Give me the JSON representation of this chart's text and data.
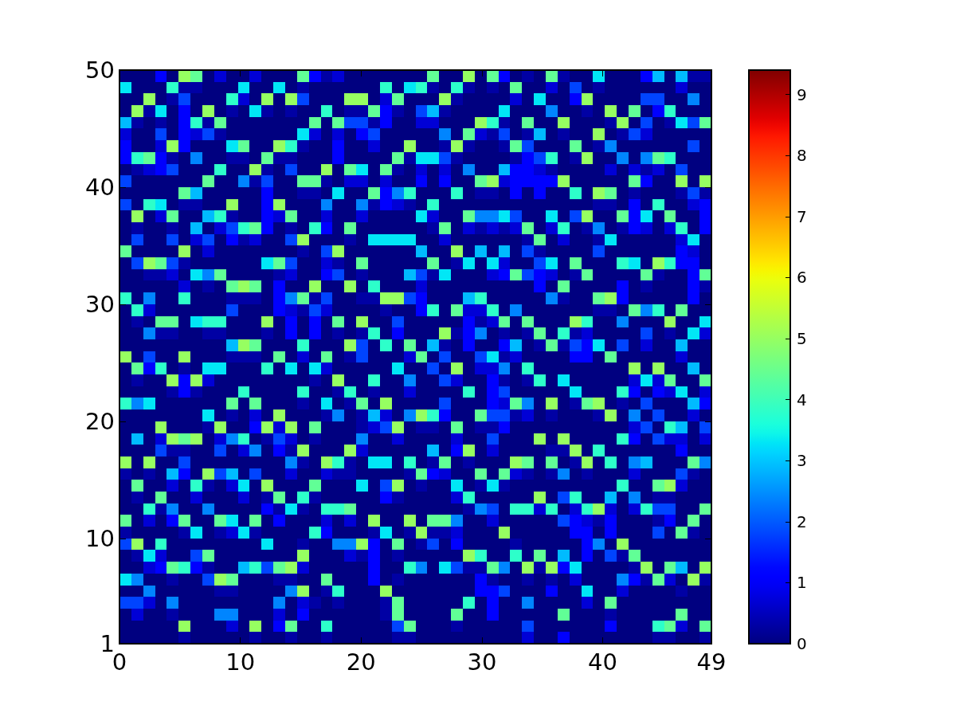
{
  "chart_data": {
    "type": "heatmap",
    "xlim": [
      0,
      49
    ],
    "xticks": [
      0,
      10,
      20,
      30,
      40,
      49
    ],
    "ylim": [
      1,
      50
    ],
    "yticks": [
      1,
      10,
      20,
      30,
      40,
      50
    ],
    "clim": [
      0,
      9.4
    ],
    "cticks": [
      0,
      1,
      2,
      3,
      4,
      5,
      6,
      7,
      8,
      9
    ],
    "cells": [
      [
        0,
        0,
        0,
        1.1,
        0,
        5,
        4.4,
        0,
        0.7,
        0,
        0,
        0.7,
        0,
        0,
        0,
        4.4,
        1.1,
        0.3,
        0.7,
        0,
        0,
        0,
        0,
        0,
        0,
        0,
        4.4,
        0,
        0,
        5,
        0,
        4.4,
        1.1,
        0,
        0.3,
        0,
        4.4,
        0.3,
        0,
        0,
        3.3,
        0,
        0,
        0,
        1.1,
        2.9,
        0,
        2.9,
        0.3,
        0.3
      ],
      [
        3.3,
        0,
        0,
        0,
        3.8,
        0.3,
        0.3,
        0,
        0,
        0,
        3.3,
        0,
        0,
        3.3,
        0,
        0.3,
        0,
        0,
        0,
        0,
        0,
        0,
        3.8,
        0,
        3.3,
        3.8,
        0.3,
        0,
        3.8,
        0.3,
        0,
        0.3,
        0,
        4.4,
        0,
        0,
        0.7,
        0,
        1.8,
        0,
        0.3,
        0,
        0,
        0,
        0,
        0,
        0,
        0.7,
        0,
        0
      ],
      [
        0,
        0,
        5,
        0,
        0.3,
        1.8,
        0,
        0,
        0,
        3.8,
        0.7,
        0,
        5,
        0,
        5,
        1.8,
        0,
        0,
        0,
        5,
        5,
        0,
        0.7,
        4.4,
        0,
        0,
        0,
        5,
        0.3,
        0,
        0,
        0,
        0,
        0.7,
        0,
        3.3,
        0,
        0,
        1.1,
        5,
        0,
        0,
        0,
        0,
        1.8,
        1.8,
        0,
        0,
        2.4,
        0
      ],
      [
        0,
        5,
        0.3,
        3.3,
        0,
        1.1,
        0,
        5,
        0,
        0.3,
        0,
        3.3,
        0.3,
        0,
        0.3,
        0,
        0,
        3.8,
        0,
        0.3,
        0.3,
        4.4,
        1.1,
        0.3,
        0,
        1.8,
        2.9,
        0.3,
        0,
        0,
        0,
        0,
        3.3,
        0,
        0,
        0,
        2.4,
        0,
        0,
        0.3,
        0,
        5,
        0,
        4.4,
        0,
        1.1,
        3.8,
        0,
        0,
        0
      ],
      [
        2.9,
        0.3,
        0,
        0.3,
        0,
        1.1,
        3.8,
        0.3,
        4.4,
        0,
        0,
        0,
        0,
        0,
        0,
        0,
        4.4,
        0,
        4.4,
        1.8,
        1.8,
        0.3,
        1.1,
        0,
        0,
        0.7,
        0.7,
        0,
        0,
        0,
        5,
        3.8,
        0.3,
        0,
        4.4,
        0,
        0,
        5,
        0,
        0,
        0,
        0.3,
        5,
        0,
        1.8,
        0,
        0.3,
        3.3,
        1.8,
        4.4
      ],
      [
        0.7,
        0,
        0,
        1.8,
        0,
        1.1,
        0.7,
        1.8,
        0.3,
        0,
        0,
        0,
        0,
        0,
        0,
        3.3,
        0.7,
        0,
        0.7,
        0,
        1.1,
        1.8,
        0,
        0,
        0,
        0,
        0,
        2.4,
        0,
        4.4,
        0.7,
        0.3,
        1.8,
        0,
        0.3,
        2.9,
        0,
        0.3,
        0,
        0,
        5,
        0,
        0.3,
        1.8,
        0.7,
        0,
        0,
        0,
        0,
        0
      ],
      [
        1.1,
        0,
        0,
        0.7,
        5,
        1.1,
        0,
        0,
        0,
        3.3,
        4.4,
        0,
        0,
        5,
        3.8,
        0.3,
        0,
        0,
        1.1,
        0,
        0,
        0.7,
        0,
        0,
        5,
        0,
        0,
        0.3,
        5,
        0.3,
        0,
        0,
        0.3,
        4.4,
        1.8,
        0,
        0,
        0,
        4.4,
        0,
        0.3,
        2.4,
        0,
        0,
        0,
        0,
        0,
        0,
        1.8,
        0
      ],
      [
        1.1,
        3.8,
        4.4,
        1.1,
        0.3,
        0,
        2.4,
        0,
        0,
        0.3,
        0.3,
        0,
        4.4,
        0.3,
        0.3,
        0,
        0,
        0,
        1.1,
        0,
        0,
        0,
        0,
        4.4,
        0.3,
        3.3,
        3.3,
        1.8,
        0.3,
        0,
        0,
        0,
        0,
        0.3,
        1.1,
        1.8,
        3.8,
        0,
        0.3,
        5,
        0,
        0,
        2.4,
        0,
        2.4,
        4.4,
        3.8,
        0,
        0,
        0
      ],
      [
        0,
        0.3,
        0.7,
        1.1,
        1.8,
        0,
        0,
        0,
        3.8,
        0,
        0,
        5,
        0.3,
        0,
        1.8,
        0,
        0,
        5,
        0,
        4.4,
        3.3,
        0,
        4.4,
        0.3,
        0,
        0.7,
        0,
        0.7,
        0,
        2.4,
        0,
        0,
        2.9,
        1.1,
        1.1,
        0.7,
        0.3,
        0,
        0,
        0,
        0,
        0.7,
        0,
        0.7,
        0.3,
        0.7,
        0,
        1.8,
        0,
        0
      ],
      [
        1.8,
        0,
        0,
        0,
        0,
        0,
        0,
        4.4,
        0,
        0,
        2.4,
        0.3,
        1.8,
        0,
        0,
        4.4,
        4.4,
        0.3,
        0,
        0.7,
        0.7,
        0,
        0.7,
        0,
        0,
        1.1,
        0,
        1.1,
        0,
        0,
        4.4,
        5,
        0.7,
        1.1,
        1.1,
        1.1,
        1.1,
        5,
        0,
        0,
        0,
        0,
        0,
        4.4,
        1.1,
        0,
        0,
        5,
        0,
        5
      ],
      [
        0,
        0,
        0,
        0,
        0,
        4.4,
        2.9,
        0,
        0,
        0,
        0,
        0,
        1.1,
        0,
        0,
        0.3,
        0.3,
        0,
        3.3,
        0,
        0,
        4.4,
        1.1,
        2.4,
        3.8,
        0,
        0,
        0,
        3.8,
        0,
        0.3,
        0.3,
        0,
        1.1,
        0,
        1.1,
        0,
        0,
        3.8,
        0,
        5,
        4.4,
        0,
        0.3,
        0,
        0,
        0,
        0.3,
        1.8,
        0.3
      ],
      [
        1.8,
        0,
        3.8,
        3.3,
        0,
        0.3,
        0.3,
        0,
        0,
        5,
        0,
        0,
        1.1,
        5,
        0,
        0,
        0,
        2.4,
        0,
        0,
        2.4,
        0.3,
        1.1,
        0.7,
        0.3,
        0,
        3.8,
        0,
        0,
        0,
        0,
        0,
        0,
        0,
        0,
        0,
        0,
        0,
        0,
        0,
        0.3,
        0.3,
        0,
        1.1,
        0,
        3.8,
        0,
        0,
        0.7,
        1.1
      ],
      [
        0,
        5,
        0,
        0.7,
        4.4,
        0,
        0,
        2.9,
        3.8,
        0.3,
        0,
        0,
        1.1,
        0.7,
        4.4,
        0,
        0,
        0.7,
        0,
        0,
        0.7,
        0,
        0,
        0,
        0,
        3.3,
        0.7,
        0,
        0,
        4.4,
        2.4,
        2.4,
        3.3,
        1.8,
        0,
        0,
        3.3,
        0,
        1.8,
        5,
        0,
        0,
        4.4,
        1.1,
        3.3,
        0,
        4.4,
        0,
        0,
        1.1
      ],
      [
        0,
        0.3,
        0,
        0,
        0.3,
        0,
        2.9,
        0,
        0.7,
        1.8,
        3.8,
        4.4,
        1.1,
        0,
        0.3,
        0,
        3.8,
        1.1,
        0,
        4.4,
        0,
        0,
        0,
        0,
        0,
        0,
        0.3,
        4.4,
        0,
        0.7,
        0.3,
        0.7,
        0.3,
        0.7,
        4.4,
        0,
        0.7,
        3.8,
        0,
        0.3,
        2.4,
        0,
        0.3,
        1.1,
        0.7,
        0,
        0.7,
        3.8,
        0,
        1.1
      ],
      [
        0,
        1.8,
        0,
        0,
        1.8,
        0,
        0.7,
        1.8,
        0,
        1.1,
        0.3,
        0.7,
        0,
        0,
        1.8,
        5,
        0,
        0,
        0,
        0.3,
        0,
        3.3,
        3.3,
        3.3,
        3.3,
        0,
        0,
        0.7,
        0,
        0,
        0,
        0,
        0,
        0,
        0.3,
        4.4,
        0,
        0.7,
        0,
        0,
        0.3,
        3.3,
        0,
        0,
        0,
        0,
        0,
        0.7,
        3.3,
        0
      ],
      [
        4.4,
        0,
        0,
        0,
        0,
        5,
        0,
        0.7,
        0,
        0,
        0,
        0,
        0,
        0,
        0,
        0.3,
        0,
        1.8,
        5,
        0,
        0,
        0,
        0,
        0,
        0,
        2.9,
        0,
        0,
        5,
        0,
        2.9,
        0,
        2.9,
        0,
        1.8,
        0.3,
        0,
        0,
        0,
        0,
        1.8,
        0,
        0,
        0,
        0,
        0,
        0,
        1.1,
        0.7,
        0
      ],
      [
        0,
        1.8,
        5,
        4.4,
        1.8,
        0.3,
        0,
        0,
        0,
        0,
        0,
        0,
        3.3,
        4.4,
        1.8,
        0,
        0,
        0.7,
        0.3,
        0,
        4.4,
        0,
        0,
        0,
        0,
        0,
        4.4,
        0,
        0.3,
        3.3,
        0,
        3.3,
        0.7,
        0,
        0,
        1.8,
        3.3,
        0,
        4.4,
        0,
        0,
        0,
        3.8,
        3.3,
        0,
        5,
        3.8,
        1.1,
        1.1,
        0
      ],
      [
        0,
        0,
        0.3,
        0.3,
        0.7,
        0,
        3.3,
        2.4,
        4.4,
        0,
        0,
        0,
        0,
        0.3,
        0.7,
        0,
        0,
        1.1,
        1.8,
        0,
        0.3,
        0,
        0,
        0,
        2.9,
        1.8,
        0.3,
        3.3,
        0,
        0,
        0,
        0.7,
        1.1,
        4.4,
        1.8,
        1.1,
        0.7,
        0,
        0.3,
        4.4,
        0,
        0,
        0,
        0,
        4.4,
        0.3,
        0,
        0,
        1.1,
        4.4
      ],
      [
        0,
        0,
        0,
        0,
        0,
        0.7,
        0,
        0.3,
        0,
        4.4,
        5,
        4.4,
        0,
        1.1,
        0,
        0,
        5,
        0,
        0,
        5,
        0,
        3.8,
        0,
        0,
        0,
        0.7,
        0,
        0,
        0,
        0,
        0,
        0,
        0,
        0,
        0,
        1.1,
        0,
        4.4,
        0,
        0,
        0,
        0,
        1.1,
        0,
        0.3,
        0,
        0,
        0,
        1.1,
        0.3
      ],
      [
        3.8,
        0,
        2.4,
        0,
        0,
        3.8,
        0,
        0,
        0,
        0.3,
        0.3,
        0.3,
        0,
        1.1,
        2.4,
        4.4,
        0.3,
        1.8,
        0,
        0,
        0.3,
        0.3,
        5,
        5,
        1.8,
        1.1,
        0,
        0,
        0,
        2.9,
        3.8,
        0,
        0,
        0,
        0,
        0,
        2.4,
        0.3,
        0,
        0,
        4.4,
        5,
        1.1,
        0,
        0,
        0,
        0,
        0,
        1.1,
        0
      ],
      [
        0,
        3.8,
        0.7,
        0,
        0,
        0,
        0,
        0,
        0,
        1.8,
        0,
        0,
        0,
        1.1,
        0.7,
        0.3,
        1.8,
        0.7,
        0,
        0,
        0,
        0,
        0.3,
        0,
        0,
        1.1,
        3.8,
        0,
        4.4,
        0.7,
        0.7,
        3.8,
        0,
        2.4,
        0,
        0,
        0,
        0,
        0,
        0,
        0.3,
        0.3,
        0,
        4.4,
        2.4,
        3.8,
        0,
        4.4,
        0,
        0
      ],
      [
        0,
        0.3,
        0,
        4.4,
        4.4,
        0,
        3.3,
        3.8,
        3.8,
        0,
        0,
        0,
        5,
        0,
        1.1,
        0,
        1.1,
        0,
        4.4,
        0,
        5,
        0,
        0,
        1.8,
        0,
        0,
        0,
        0,
        0,
        1.1,
        0.3,
        0.7,
        4.4,
        0,
        4.4,
        0,
        0,
        0,
        5,
        3.8,
        0,
        0,
        2.4,
        0,
        0,
        0,
        5,
        0,
        0,
        3.3
      ],
      [
        0,
        0,
        2.4,
        0.3,
        0.3,
        0,
        0,
        0.3,
        0.3,
        0,
        0,
        0,
        0.3,
        0,
        1.1,
        0,
        1.1,
        0,
        0.3,
        0,
        0.3,
        3.8,
        0,
        1.1,
        0,
        0,
        0,
        5,
        0.3,
        1.1,
        2.4,
        0,
        0.3,
        0,
        0.3,
        4.4,
        0,
        3.8,
        0.3,
        0.7,
        0,
        0,
        0,
        0,
        1.8,
        0,
        0.3,
        0,
        3.3,
        0.7
      ],
      [
        0,
        0,
        0,
        0,
        0,
        0,
        0,
        0,
        0,
        2.9,
        5,
        4.4,
        0,
        0,
        0,
        3.8,
        0,
        0,
        0,
        5,
        1.8,
        0,
        3.8,
        0,
        4.4,
        0,
        2.9,
        0.3,
        0,
        1.1,
        0,
        0,
        1.1,
        2.9,
        0,
        0.3,
        4.4,
        0.3,
        1.8,
        1.1,
        3.3,
        0,
        1.8,
        0,
        0.7,
        0,
        0,
        2.9,
        0,
        0
      ],
      [
        5,
        0,
        1.8,
        0,
        0,
        5,
        0,
        0,
        0,
        0.3,
        0.3,
        0.3,
        0,
        4.4,
        0,
        0.7,
        0,
        4.4,
        0,
        0.3,
        1.8,
        0,
        0,
        0,
        0.7,
        4.4,
        0,
        1.8,
        0,
        0,
        1.8,
        3.3,
        0.3,
        0.7,
        0,
        0,
        0,
        0,
        1.1,
        1.1,
        0,
        4.4,
        0,
        0,
        0,
        0,
        0,
        0.7,
        0,
        0
      ],
      [
        0,
        4.4,
        1.1,
        3.8,
        0,
        0.3,
        0,
        3.3,
        3.3,
        0,
        0,
        0,
        3.8,
        0,
        3.3,
        0,
        3.3,
        0.7,
        0,
        0,
        0,
        0,
        0,
        3.3,
        0,
        0,
        1.8,
        0,
        5,
        0,
        0.7,
        0.7,
        2.4,
        0,
        3.8,
        0,
        0,
        0,
        0,
        0,
        0,
        0,
        0,
        5,
        0,
        5,
        0,
        0,
        2.9,
        0
      ],
      [
        0,
        0.3,
        0,
        0,
        5,
        1.1,
        5,
        0.7,
        0,
        0,
        0,
        0,
        0,
        0,
        0,
        0,
        0.3,
        0,
        5,
        0,
        0,
        3.8,
        0,
        0,
        2.4,
        0,
        0,
        1.8,
        0.7,
        0,
        0,
        1.1,
        0.3,
        0,
        0.3,
        3.8,
        0,
        3.3,
        0,
        0,
        0,
        0,
        0,
        0.7,
        3.3,
        0.7,
        4.4,
        0,
        0,
        4.4
      ],
      [
        0,
        0,
        0,
        0,
        0.3,
        1.1,
        0.3,
        0,
        0,
        0,
        3.8,
        0,
        0,
        0,
        0,
        3.8,
        0,
        0,
        0.3,
        3.8,
        0,
        0.3,
        0,
        0,
        0.7,
        0,
        0,
        0,
        0,
        3.8,
        0,
        1.1,
        1.8,
        0,
        0,
        0,
        0,
        0,
        3.3,
        0,
        0,
        0,
        3.8,
        1.1,
        0,
        1.1,
        0.7,
        3.3,
        0,
        0.7
      ],
      [
        3.8,
        2.4,
        3.3,
        0,
        0,
        0,
        0,
        0,
        0,
        4.4,
        0,
        4.4,
        0,
        0,
        0,
        0.3,
        0,
        3.3,
        0,
        0.3,
        4.4,
        0,
        5,
        0,
        0,
        0,
        0,
        1.8,
        0,
        0,
        0,
        1.1,
        0.7,
        4.4,
        2.4,
        0,
        5,
        0,
        0.3,
        4.4,
        5,
        0,
        0.3,
        0,
        1.8,
        0,
        0,
        0,
        2.9,
        1.1
      ],
      [
        0,
        0,
        0,
        0,
        0,
        0,
        0,
        3.3,
        0,
        0.3,
        0,
        0.7,
        0,
        5,
        0,
        0,
        0,
        0.3,
        2.4,
        0,
        0.3,
        2.9,
        0.7,
        0,
        2.4,
        5,
        3.8,
        1.1,
        0,
        0,
        4.4,
        1.8,
        1.8,
        0.3,
        0.7,
        0,
        0.3,
        0,
        0,
        0,
        0.3,
        5,
        0,
        2.4,
        0,
        1.8,
        0,
        0,
        0.7,
        0
      ],
      [
        0,
        0,
        0,
        5,
        0,
        0,
        0,
        0.3,
        5,
        0,
        0,
        1.1,
        5,
        0.7,
        5,
        0,
        4.4,
        0,
        0,
        0,
        0.3,
        0.7,
        1.8,
        5,
        0,
        0.3,
        0.3,
        0,
        4.4,
        0,
        0.3,
        0.3,
        1.1,
        0,
        0,
        0,
        0,
        0,
        0,
        0,
        0,
        0,
        0,
        0.7,
        1.8,
        0,
        3.8,
        2.9,
        0,
        1.8
      ],
      [
        0,
        2.9,
        0,
        0.7,
        5,
        4.4,
        5,
        0,
        0.7,
        2.4,
        3.8,
        0,
        0.3,
        1.8,
        0.7,
        0,
        0.3,
        0,
        0,
        0,
        2.4,
        0,
        0,
        0.7,
        0,
        0,
        0,
        0,
        0.7,
        0,
        0,
        1.8,
        0,
        0,
        0,
        5,
        0,
        5,
        0,
        0,
        0,
        0,
        3.8,
        1.1,
        0,
        1.8,
        0.7,
        0.7,
        0,
        0.7
      ],
      [
        0,
        0,
        0,
        1.8,
        0.3,
        0.3,
        0,
        0,
        1.8,
        0,
        0.7,
        2.4,
        0,
        1.1,
        0.3,
        5,
        0,
        0,
        0,
        5,
        0.7,
        0,
        0,
        0,
        0,
        0,
        2.9,
        0,
        1.1,
        5,
        0,
        0.7,
        0,
        0,
        0,
        0,
        0.3,
        0.3,
        5,
        0,
        3.8,
        0,
        0,
        0,
        0,
        0,
        0,
        1.1,
        0,
        0
      ],
      [
        5,
        0,
        5,
        0,
        0,
        1.8,
        0,
        0,
        0,
        0,
        0,
        0,
        0,
        0,
        2.4,
        0.3,
        0,
        5,
        3.8,
        0.3,
        0,
        3.3,
        3.3,
        0,
        3.8,
        0,
        0.3,
        4.4,
        0,
        0.3,
        0,
        0,
        0,
        5,
        4.4,
        0,
        4.4,
        0,
        0.3,
        5,
        0,
        3.8,
        0,
        2.4,
        2.9,
        0,
        0,
        0,
        4.4,
        2.4
      ],
      [
        0.3,
        0,
        0.3,
        0,
        2.9,
        1.1,
        0,
        5,
        1.8,
        2.9,
        0,
        1.8,
        0,
        0,
        0.7,
        0,
        0,
        0.7,
        0.3,
        0.3,
        0,
        0,
        0,
        0,
        0.3,
        4.4,
        1.1,
        0.7,
        0,
        0,
        4.4,
        0,
        4.4,
        0.7,
        0.3,
        0,
        0.3,
        2.4,
        0,
        0.3,
        0,
        0,
        0,
        0.7,
        0,
        0,
        0,
        1.8,
        0.3,
        0
      ],
      [
        0,
        4.4,
        0,
        0,
        0.7,
        0,
        3.8,
        0.3,
        0,
        0.7,
        3.3,
        0,
        5,
        0,
        0,
        0,
        4.4,
        0,
        0,
        0,
        3.3,
        0,
        1.8,
        5,
        0,
        0.3,
        0,
        0,
        3.3,
        0,
        0.3,
        3.3,
        0.3,
        0,
        0,
        0,
        0,
        0,
        0,
        0,
        0,
        0,
        3.8,
        0,
        0,
        4.4,
        5,
        0.7,
        0,
        0
      ],
      [
        0,
        0.3,
        0,
        4.4,
        0,
        0,
        0.7,
        0,
        0,
        0,
        0.7,
        0,
        0.3,
        4.4,
        0,
        3.8,
        0.3,
        0,
        0,
        0,
        0,
        0,
        1.1,
        0.3,
        0,
        0,
        0,
        0,
        0.7,
        3.8,
        0,
        0,
        0,
        0,
        0,
        5,
        0,
        1.8,
        3.8,
        0,
        0,
        2.9,
        0,
        2.4,
        0,
        0.3,
        0.3,
        0,
        0,
        0
      ],
      [
        0,
        0,
        3.8,
        0.3,
        2.4,
        0,
        0,
        2.4,
        0,
        0,
        0,
        0,
        1.1,
        0.3,
        3.3,
        0.3,
        0,
        3.8,
        3.8,
        4.4,
        0,
        0,
        0,
        0,
        0,
        0,
        0,
        0,
        0,
        0.3,
        2.4,
        1.8,
        0,
        3.8,
        3.8,
        0.7,
        3.8,
        0,
        0.7,
        3.8,
        5,
        0.7,
        0,
        0.7,
        3.8,
        1.8,
        1.8,
        0,
        0,
        4.4
      ],
      [
        4.4,
        0,
        0.7,
        0,
        1.1,
        4.4,
        0,
        0,
        4.4,
        3.3,
        0,
        4.4,
        0,
        1.1,
        0,
        0,
        0,
        0.7,
        0,
        0.7,
        0,
        5,
        0,
        0,
        5,
        0,
        4.4,
        4.4,
        2.4,
        0,
        0,
        0.7,
        0,
        0,
        0,
        0,
        0,
        1.8,
        1.1,
        0.7,
        0.3,
        1.1,
        0,
        0,
        0,
        0.3,
        1.1,
        0,
        4.4,
        0
      ],
      [
        0.3,
        0,
        0,
        0,
        0,
        0.3,
        3.3,
        0,
        0.3,
        0.7,
        3.3,
        0.3,
        0,
        0,
        0,
        0,
        3.8,
        1.1,
        0,
        0,
        0,
        0.3,
        3.3,
        0,
        0.3,
        5,
        0.3,
        0.3,
        0.7,
        0,
        0,
        0,
        5,
        0,
        0,
        0,
        0,
        0,
        1.1,
        1.1,
        0,
        1.1,
        0,
        0,
        0,
        1.8,
        0,
        4.4,
        0.3,
        0
      ],
      [
        1.8,
        5,
        0,
        3.8,
        0,
        0,
        0,
        0,
        0,
        0,
        0,
        0,
        3.3,
        0,
        0,
        0.3,
        0,
        0,
        2.4,
        2.4,
        5,
        1.1,
        0,
        4.4,
        0,
        0.3,
        1.8,
        0,
        1.1,
        0,
        0,
        0,
        0,
        0.3,
        0,
        0,
        0,
        0,
        0,
        1.1,
        2.4,
        0,
        5,
        0,
        0,
        0,
        0,
        0,
        0,
        0
      ],
      [
        0,
        0.3,
        3.3,
        0.7,
        0,
        0,
        1.8,
        4.4,
        0,
        0,
        0,
        0,
        0,
        0,
        0,
        5,
        0,
        0,
        0,
        0.7,
        0.3,
        1.1,
        0,
        0.3,
        0,
        0,
        0,
        0,
        0,
        5,
        3.8,
        0,
        0,
        3.8,
        0,
        4.4,
        0,
        2.9,
        0,
        1.1,
        0,
        1.8,
        0.3,
        4.4,
        0,
        0,
        0,
        0,
        0,
        0
      ],
      [
        0,
        0,
        0.7,
        1.1,
        4.4,
        3.8,
        1.1,
        0.3,
        0,
        0,
        2.9,
        3.8,
        1.8,
        4.4,
        5,
        0.7,
        0,
        0,
        0,
        0,
        0,
        1.1,
        0,
        0,
        3.8,
        2.4,
        0,
        3.3,
        1.8,
        0.3,
        0.3,
        4.4,
        2.4,
        0,
        5,
        0.3,
        5,
        1.1,
        3.3,
        0,
        0,
        0,
        0,
        0.3,
        5,
        0,
        4.4,
        2.9,
        0,
        5
      ],
      [
        3.3,
        2.4,
        0,
        0,
        0.3,
        0,
        0,
        1.8,
        5,
        4.4,
        0,
        0,
        0,
        0.3,
        0.3,
        0,
        0,
        4.4,
        0,
        0,
        0,
        1.1,
        0,
        0.3,
        0,
        0,
        0,
        0,
        0,
        0,
        1.1,
        0.3,
        0,
        0,
        0.3,
        0,
        0.3,
        0,
        0.7,
        0,
        0,
        0,
        2.4,
        1.1,
        0.3,
        4.4,
        0.7,
        0,
        5,
        0.3
      ],
      [
        0,
        0,
        2.4,
        0,
        0,
        0,
        0,
        0,
        0.3,
        0.3,
        0,
        0,
        0,
        0,
        2.4,
        5,
        0,
        0.3,
        3.8,
        0,
        0,
        0,
        5,
        0,
        0,
        0,
        0,
        0,
        0,
        0,
        1.1,
        1.1,
        1.8,
        0,
        0,
        0,
        1.1,
        0,
        0,
        3.3,
        0,
        0,
        0.7,
        0,
        0,
        0,
        0,
        0.3,
        0,
        0
      ],
      [
        1.8,
        1.8,
        0.7,
        0,
        2.4,
        0,
        0,
        0,
        0,
        0,
        0,
        0,
        0,
        2.4,
        0,
        0.7,
        0.3,
        0,
        0.3,
        0,
        0,
        0,
        0.3,
        4.4,
        0,
        0,
        0,
        0,
        0,
        3.8,
        0,
        1.1,
        0,
        0,
        2.4,
        0,
        0,
        0,
        0,
        0.7,
        0,
        4.4,
        0,
        0,
        0,
        0,
        0,
        0,
        0,
        0
      ],
      [
        0,
        0.7,
        0,
        0,
        0.3,
        0,
        0,
        0,
        2.4,
        2.4,
        0,
        0,
        0,
        0.7,
        0,
        1.1,
        0,
        0,
        0,
        0,
        0,
        0,
        0.3,
        4.4,
        0,
        0,
        0,
        0,
        4.4,
        0,
        0,
        1.1,
        0,
        0,
        0,
        0,
        0,
        4.4,
        0,
        0,
        0,
        0.3,
        0,
        0,
        0,
        0,
        0,
        4.4,
        0,
        0
      ],
      [
        0,
        0,
        0,
        0,
        0,
        5,
        0,
        0,
        0,
        0.7,
        0,
        5,
        0,
        1.1,
        4.4,
        0,
        0,
        3.8,
        0,
        0,
        0,
        0,
        0,
        1.8,
        4.4,
        0,
        0,
        0,
        0.3,
        0,
        0,
        0,
        0,
        0,
        1.8,
        0,
        0,
        0,
        0,
        0,
        0,
        1.1,
        0,
        0,
        0,
        3.8,
        4.4,
        0.7,
        0,
        4.4
      ],
      [
        0,
        0,
        0,
        0,
        0,
        0.3,
        0,
        0,
        0,
        0,
        0,
        0.3,
        0,
        0,
        0.3,
        0,
        0,
        0.3,
        0,
        0,
        0,
        0,
        0,
        0.3,
        0.3,
        0,
        0,
        0,
        0,
        0,
        0,
        0,
        0,
        0,
        0.7,
        0,
        0,
        1.1,
        0,
        0,
        0,
        0,
        0,
        0,
        0,
        0.3,
        0.3,
        0,
        0,
        0.3
      ]
    ]
  }
}
